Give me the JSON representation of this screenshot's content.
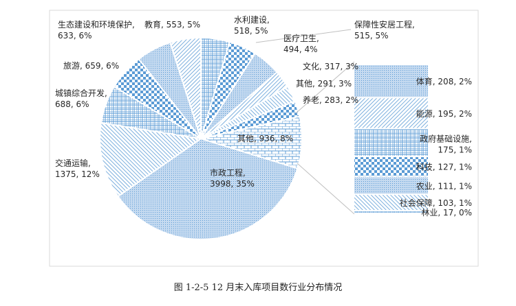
{
  "chart_data": {
    "type": "pie-of-bar",
    "title": "",
    "pie": [
      {
        "label": "水利建设",
        "value": 518,
        "pct": "5%"
      },
      {
        "label": "医疗卫生",
        "value": 494,
        "pct": "4%"
      },
      {
        "label": "保障性安居工程",
        "value": 515,
        "pct": "5%"
      },
      {
        "label": "文化",
        "value": 317,
        "pct": "3%"
      },
      {
        "label": "其他",
        "value": 291,
        "pct": "3%"
      },
      {
        "label": "养老",
        "value": 283,
        "pct": "2%"
      },
      {
        "label": "其他",
        "value": 936,
        "pct": "8%"
      },
      {
        "label": "市政工程",
        "value": 3998,
        "pct": "35%"
      },
      {
        "label": "交通运输",
        "value": 1375,
        "pct": "12%"
      },
      {
        "label": "城镇综合开发",
        "value": 688,
        "pct": "6%"
      },
      {
        "label": "旅游",
        "value": 659,
        "pct": "6%"
      },
      {
        "label": "生态建设和环境保护",
        "value": 633,
        "pct": "6%"
      },
      {
        "label": "教育",
        "value": 553,
        "pct": "5%"
      }
    ],
    "bar": [
      {
        "label": "体育",
        "value": 208,
        "pct": "2%"
      },
      {
        "label": "能源",
        "value": 195,
        "pct": "2%"
      },
      {
        "label": "政府基础设施",
        "value": 175,
        "pct": "1%"
      },
      {
        "label": "科技",
        "value": 127,
        "pct": "1%"
      },
      {
        "label": "农业",
        "value": 111,
        "pct": "1%"
      },
      {
        "label": "社会保障",
        "value": 103,
        "pct": "1%"
      },
      {
        "label": "林业",
        "value": 17,
        "pct": "0%"
      }
    ],
    "colors": {
      "fill": "#5b9bd5",
      "light": "#c5daf0"
    }
  },
  "caption": "图 1-2-5  12 月末入库项目数行业分布情况"
}
